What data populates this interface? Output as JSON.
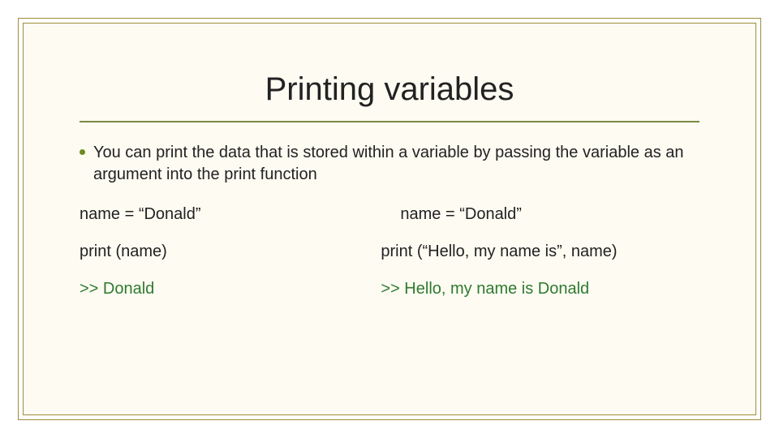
{
  "slide": {
    "title": "Printing variables",
    "bullet": "You can print the data that is stored within a variable by passing the variable as an argument into the print function",
    "examples": {
      "left": {
        "line1": "name = “Donald”",
        "line2": "print (name)",
        "output": ">> Donald"
      },
      "right": {
        "line1": "name = “Donald”",
        "line2": "print (“Hello, my name is”, name)",
        "output": ">> Hello, my name is Donald"
      }
    },
    "colors": {
      "border": "#a08c3a",
      "background": "#fdfbf2",
      "rule": "#7a8a42",
      "bullet_dot": "#6e8b1f",
      "text": "#222222",
      "output": "#2f7a2f"
    },
    "fonts": {
      "title_size_pt": 40,
      "body_size_pt": 20,
      "family": "Arial"
    }
  }
}
